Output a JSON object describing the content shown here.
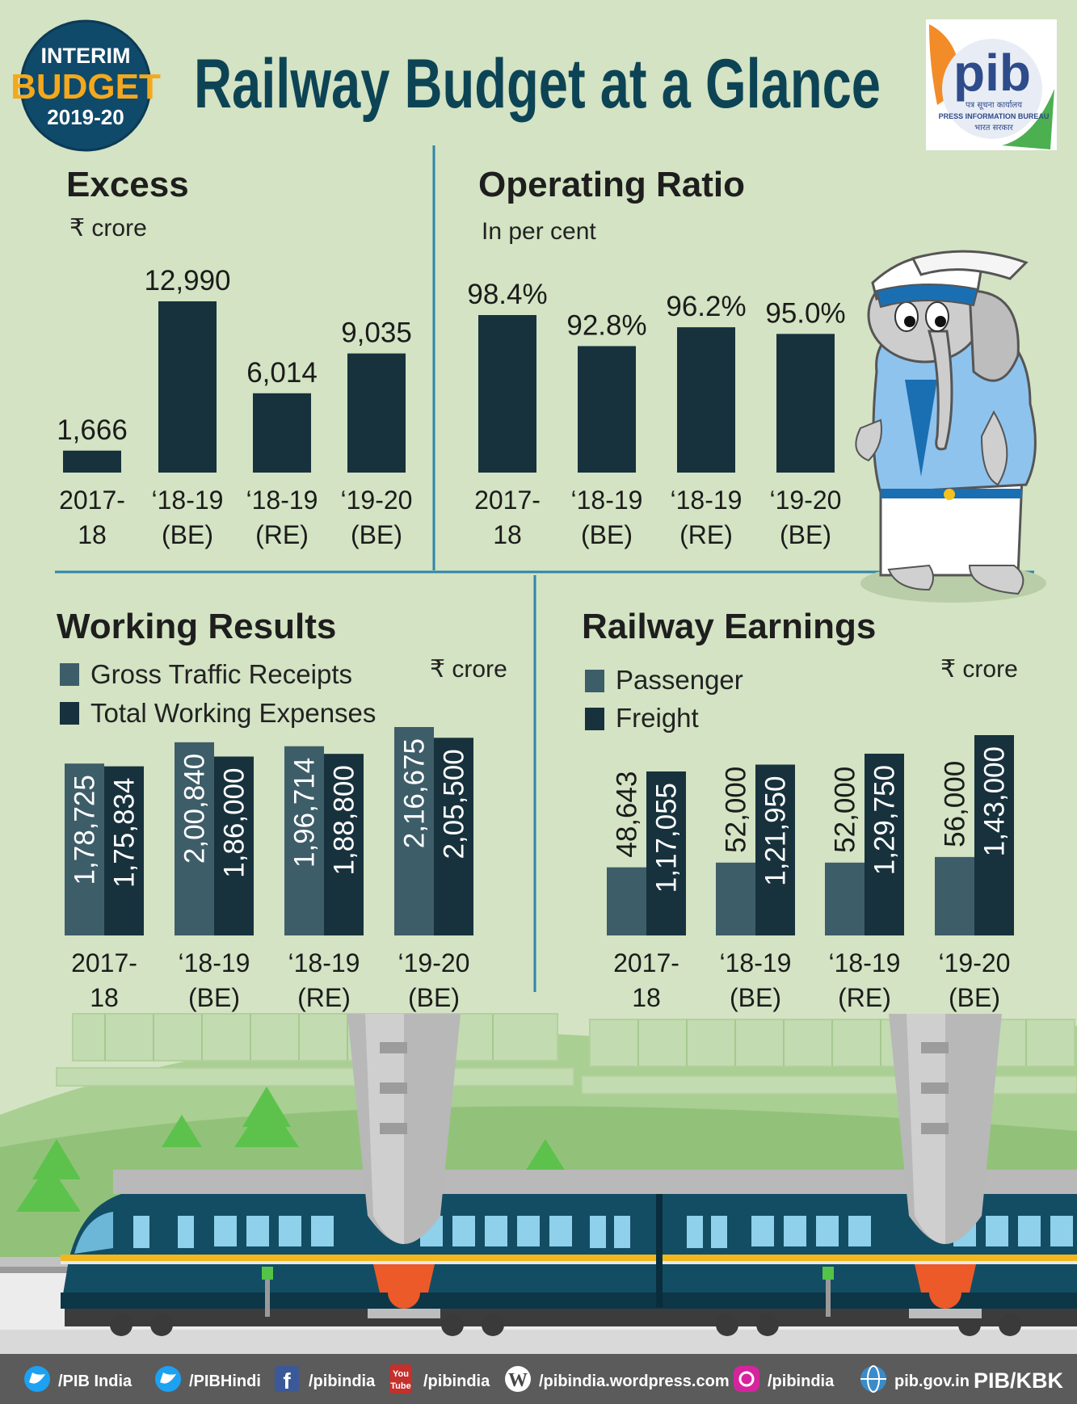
{
  "header": {
    "title": "Railway Budget at a Glance",
    "badge": {
      "line1": "INTERIM",
      "line2": "BUDGET",
      "line3": "2019-20"
    },
    "logo": {
      "name": "pib",
      "line1": "पत्र सूचना कार्यालय",
      "line2": "PRESS INFORMATION BUREAU",
      "line3": "भारत सरकार"
    }
  },
  "colors": {
    "background": "#d3e3c3",
    "dark_bar": "#17323d",
    "light_bar": "#3d5d69",
    "title": "#0d4455",
    "divider": "#2e86ab"
  },
  "chart_data": [
    {
      "id": "excess",
      "type": "bar",
      "title": "Excess",
      "unit": "₹ crore",
      "categories": [
        [
          "2017-",
          "18"
        ],
        [
          "‘18-19",
          "(BE)"
        ],
        [
          "‘18-19",
          "(RE)"
        ],
        [
          "‘19-20",
          "(BE)"
        ]
      ],
      "values": [
        1666,
        12990,
        6014,
        9035
      ],
      "labels": [
        "1,666",
        "12,990",
        "6,014",
        "9,035"
      ],
      "ylim": [
        0,
        12990
      ]
    },
    {
      "id": "operating_ratio",
      "type": "bar",
      "title": "Operating Ratio",
      "unit": "In per cent",
      "categories": [
        [
          "2017-",
          "18"
        ],
        [
          "‘18-19",
          "(BE)"
        ],
        [
          "‘18-19",
          "(RE)"
        ],
        [
          "‘19-20",
          "(BE)"
        ]
      ],
      "values": [
        98.4,
        92.8,
        96.2,
        95.0
      ],
      "labels": [
        "98.4%",
        "92.8%",
        "96.2%",
        "95.0%"
      ]
    },
    {
      "id": "working_results",
      "type": "bar",
      "title": "Working Results",
      "unit": "₹ crore",
      "categories": [
        [
          "2017-",
          "18"
        ],
        [
          "‘18-19",
          "(BE)"
        ],
        [
          "‘18-19",
          "(RE)"
        ],
        [
          "‘19-20",
          "(BE)"
        ]
      ],
      "series": [
        {
          "name": "Gross Traffic Receipts",
          "values": [
            178725,
            200840,
            196714,
            216675
          ],
          "labels": [
            "1,78,725",
            "2,00,840",
            "1,96,714",
            "2,16,675"
          ],
          "color": "#3d5d69"
        },
        {
          "name": "Total Working Expenses",
          "values": [
            175834,
            186000,
            188800,
            205500
          ],
          "labels": [
            "1,75,834",
            "1,86,000",
            "1,88,800",
            "2,05,500"
          ],
          "color": "#17323d"
        }
      ],
      "ylim": [
        0,
        216675
      ]
    },
    {
      "id": "railway_earnings",
      "type": "bar",
      "title": "Railway Earnings",
      "unit": "₹ crore",
      "categories": [
        [
          "2017-",
          "18"
        ],
        [
          "‘18-19",
          "(BE)"
        ],
        [
          "‘18-19",
          "(RE)"
        ],
        [
          "‘19-20",
          "(BE)"
        ]
      ],
      "series": [
        {
          "name": "Passenger",
          "values": [
            48643,
            52000,
            52000,
            56000
          ],
          "labels": [
            "48,643",
            "52,000",
            "52,000",
            "56,000"
          ],
          "color": "#3d5d69"
        },
        {
          "name": "Freight",
          "values": [
            117055,
            121950,
            129750,
            143000
          ],
          "labels": [
            "1,17,055",
            "1,21,950",
            "1,29,750",
            "1,43,000"
          ],
          "color": "#17323d"
        }
      ],
      "ylim": [
        0,
        143000
      ]
    }
  ],
  "footer": {
    "items": [
      {
        "icon": "twitter-icon",
        "text": "/PIB  India"
      },
      {
        "icon": "twitter-icon",
        "text": "/PIBHindi"
      },
      {
        "icon": "facebook-icon",
        "text": "/pibindia"
      },
      {
        "icon": "youtube-icon",
        "icon_text": "You Tube",
        "text": "/pibindia"
      },
      {
        "icon": "wordpress-icon",
        "text": "/pibindia.wordpress.com"
      },
      {
        "icon": "instagram-icon",
        "text": "/pibindia"
      },
      {
        "icon": "globe-icon",
        "text": "pib.gov.in"
      }
    ],
    "credit": "PIB/KBK"
  }
}
